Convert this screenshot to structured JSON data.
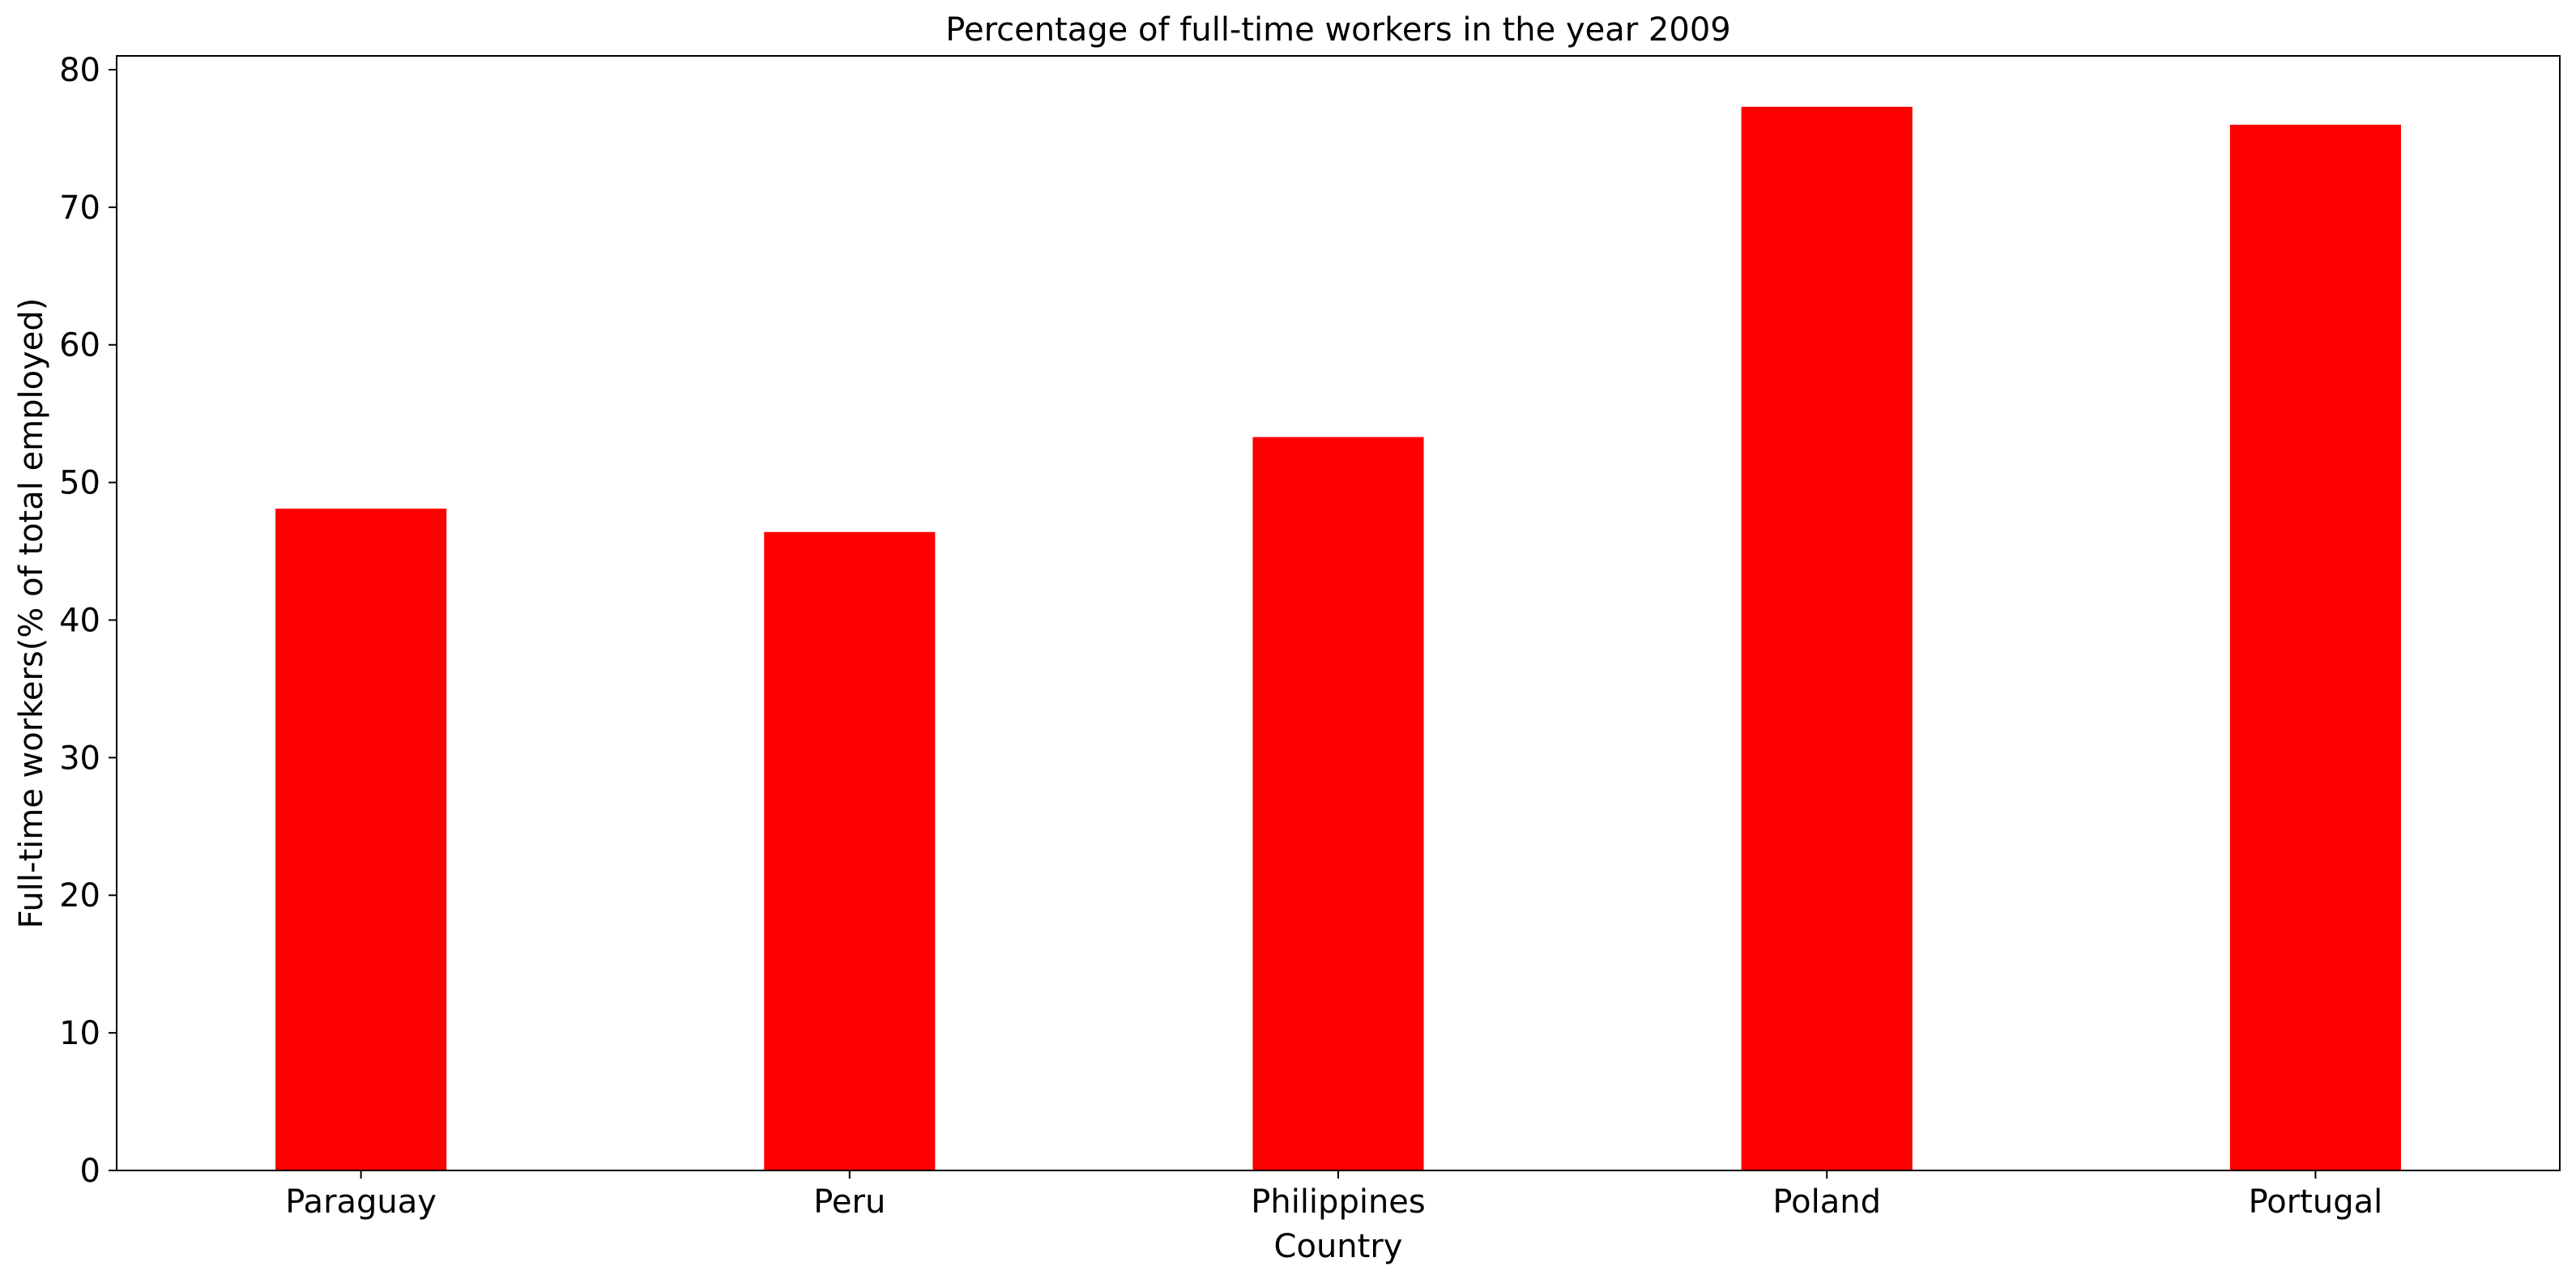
{
  "chart_data": {
    "type": "bar",
    "title": "Percentage of full-time workers in the year 2009",
    "xlabel": "Country",
    "ylabel": "Full-time workers(% of total employed)",
    "categories": [
      "Paraguay",
      "Peru",
      "Philippines",
      "Poland",
      "Portugal"
    ],
    "values": [
      48.1,
      46.4,
      53.3,
      77.3,
      76.0
    ],
    "ylim": [
      0,
      81
    ],
    "yticks": [
      0,
      10,
      20,
      30,
      40,
      50,
      60,
      70,
      80
    ],
    "grid": false,
    "legend": "none",
    "bar_color": "#ff0000"
  }
}
